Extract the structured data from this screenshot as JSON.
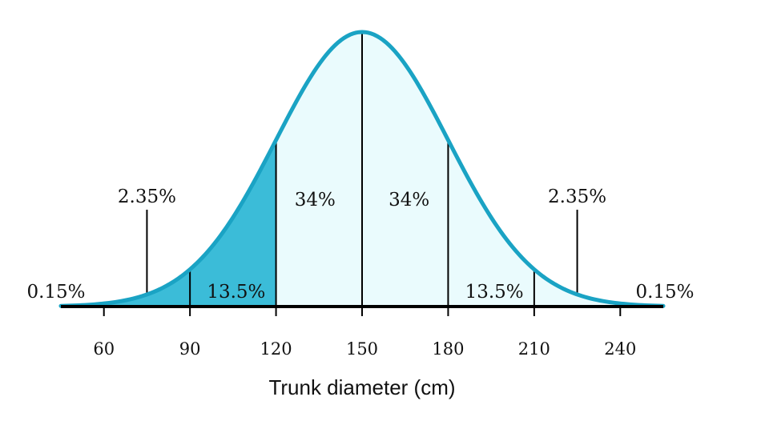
{
  "chart_data": {
    "type": "area",
    "distribution": "normal",
    "mean": 150,
    "sd": 30,
    "xlabel": "Trunk diameter (cm)",
    "ticks": [
      60,
      90,
      120,
      150,
      180,
      210,
      240
    ],
    "tick_labels": [
      "60",
      "90",
      "120",
      "150",
      "180",
      "210",
      "240"
    ],
    "xlim": [
      45,
      255
    ],
    "region_labels": [
      {
        "text": "0.15%",
        "x_from": 45,
        "x_to": 60,
        "anchor_x": 45
      },
      {
        "text": "2.35%",
        "x_from": 60,
        "x_to": 90,
        "anchor_x": 75
      },
      {
        "text": "13.5%",
        "x_from": 90,
        "x_to": 120,
        "anchor_x": 105
      },
      {
        "text": "34%",
        "x_from": 120,
        "x_to": 150,
        "anchor_x": 135
      },
      {
        "text": "34%",
        "x_from": 150,
        "x_to": 180,
        "anchor_x": 165
      },
      {
        "text": "13.5%",
        "x_from": 180,
        "x_to": 210,
        "anchor_x": 195
      },
      {
        "text": "2.35%",
        "x_from": 210,
        "x_to": 240,
        "anchor_x": 225
      },
      {
        "text": "0.15%",
        "x_from": 240,
        "x_to": 255,
        "anchor_x": 255
      }
    ],
    "shaded_dark_range": [
      45,
      120
    ],
    "colors": {
      "curve": "#1aa3c4",
      "shade_dark": "#3bbcd8",
      "shade_light": "#eafbfd",
      "axis": "#000000",
      "lines": "#000000"
    }
  }
}
